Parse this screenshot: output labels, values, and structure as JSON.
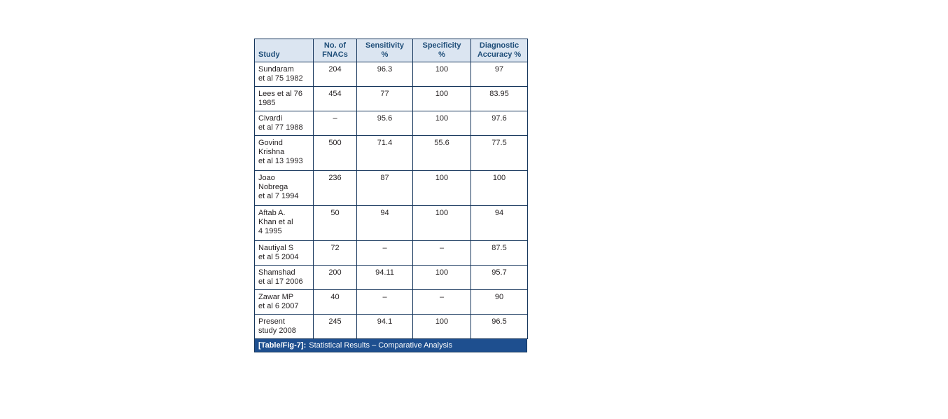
{
  "colors": {
    "header-bg": "#dbe5f1",
    "header-text": "#1f4e79",
    "border": "#16365c",
    "caption-bg": "#1e4f8f",
    "caption-text": "#ffffff",
    "body-text": "#231f20",
    "page-bg": "#ffffff"
  },
  "table": {
    "columns": [
      {
        "key": "study",
        "label": "Study"
      },
      {
        "key": "fnacs",
        "label": "No. of\nFNACs"
      },
      {
        "key": "sensitivity",
        "label": "Sensitivity\n%"
      },
      {
        "key": "specificity",
        "label": "Specificity\n%"
      },
      {
        "key": "accuracy",
        "label": "Diagnostic\nAccuracy %"
      }
    ],
    "rows": [
      {
        "study": "Sundaram\net al 75 1982",
        "fnacs": "204",
        "sensitivity": "96.3",
        "specificity": "100",
        "accuracy": "97"
      },
      {
        "study": "Lees et al 76\n1985",
        "fnacs": "454",
        "sensitivity": "77",
        "specificity": "100",
        "accuracy": "83.95"
      },
      {
        "study": "Civardi\net al 77 1988",
        "fnacs": "–",
        "sensitivity": "95.6",
        "specificity": "100",
        "accuracy": "97.6"
      },
      {
        "study": "Govind\nKrishna\net al 13 1993",
        "fnacs": "500",
        "sensitivity": "71.4",
        "specificity": "55.6",
        "accuracy": "77.5"
      },
      {
        "study": "Joao\nNobrega\net al 7 1994",
        "fnacs": "236",
        "sensitivity": "87",
        "specificity": "100",
        "accuracy": "100"
      },
      {
        "study": "Aftab A.\nKhan et al\n4 1995",
        "fnacs": "50",
        "sensitivity": "94",
        "specificity": "100",
        "accuracy": "94"
      },
      {
        "study": "Nautiyal S\net al 5 2004",
        "fnacs": "72",
        "sensitivity": "–",
        "specificity": "–",
        "accuracy": "87.5"
      },
      {
        "study": "Shamshad\net al 17 2006",
        "fnacs": "200",
        "sensitivity": "94.11",
        "specificity": "100",
        "accuracy": "95.7"
      },
      {
        "study": "Zawar MP\net al 6 2007",
        "fnacs": "40",
        "sensitivity": "–",
        "specificity": "–",
        "accuracy": "90"
      },
      {
        "study": "Present\nstudy 2008",
        "fnacs": "245",
        "sensitivity": "94.1",
        "specificity": "100",
        "accuracy": "96.5"
      }
    ],
    "caption": {
      "label": "[Table/Fig-7]:",
      "text": "Statistical Results – Comparative Analysis"
    }
  }
}
